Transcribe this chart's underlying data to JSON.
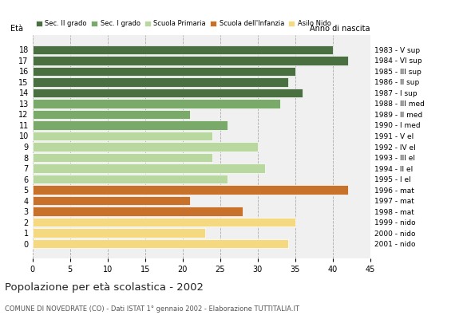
{
  "ages": [
    18,
    17,
    16,
    15,
    14,
    13,
    12,
    11,
    10,
    9,
    8,
    7,
    6,
    5,
    4,
    3,
    2,
    1,
    0
  ],
  "values": [
    40,
    42,
    35,
    34,
    36,
    33,
    21,
    26,
    24,
    30,
    24,
    31,
    26,
    42,
    21,
    28,
    35,
    23,
    34
  ],
  "anno_nascita": [
    "1983 - V sup",
    "1984 - VI sup",
    "1985 - III sup",
    "1986 - II sup",
    "1987 - I sup",
    "1988 - III med",
    "1989 - II med",
    "1990 - I med",
    "1991 - V el",
    "1992 - IV el",
    "1993 - III el",
    "1994 - II el",
    "1995 - I el",
    "1996 - mat",
    "1997 - mat",
    "1998 - mat",
    "1999 - nido",
    "2000 - nido",
    "2001 - nido"
  ],
  "colors": [
    "#4a7041",
    "#4a7041",
    "#4a7041",
    "#4a7041",
    "#4a7041",
    "#7aaa6a",
    "#7aaa6a",
    "#7aaa6a",
    "#b8d8a0",
    "#b8d8a0",
    "#b8d8a0",
    "#b8d8a0",
    "#b8d8a0",
    "#c8712a",
    "#c8712a",
    "#c8712a",
    "#f5d980",
    "#f5d980",
    "#f5d980"
  ],
  "legend_labels": [
    "Sec. II grado",
    "Sec. I grado",
    "Scuola Primaria",
    "Scuola dell'Infanzia",
    "Asilo Nido"
  ],
  "legend_colors": [
    "#4a7041",
    "#7aaa6a",
    "#b8d8a0",
    "#c8712a",
    "#f5d980"
  ],
  "title": "Popolazione per età scolastica - 2002",
  "subtitle": "COMUNE DI NOVEDRATE (CO) - Dati ISTAT 1° gennaio 2002 - Elaborazione TUTTITALIA.IT",
  "xlabel_eta": "Età",
  "xlabel_anno": "Anno di nascita",
  "xlim": [
    0,
    45
  ],
  "xticks": [
    0,
    5,
    10,
    15,
    20,
    25,
    30,
    35,
    40,
    45
  ],
  "background_color": "#ffffff",
  "plot_bg_color": "#f0f0f0"
}
